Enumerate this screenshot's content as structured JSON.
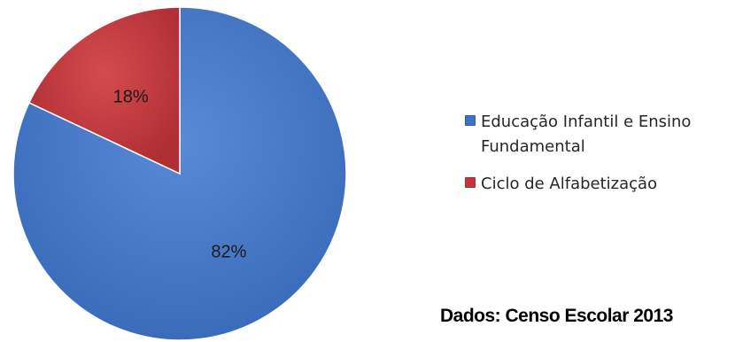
{
  "chart_data": {
    "type": "pie",
    "categories": [
      "Educação Infantil e Ensino Fundamental",
      "Ciclo de Alfabetização"
    ],
    "values": [
      82,
      18
    ],
    "labels": [
      "82%",
      "18%"
    ],
    "colors": [
      "#3d73c4",
      "#c0363a"
    ],
    "legend_position": "right"
  },
  "legend": {
    "items": [
      {
        "label": "Educação Infantil e Ensino Fundamental",
        "color": "#3d73c4"
      },
      {
        "label": "Ciclo de Alfabetização",
        "color": "#c0363a"
      }
    ]
  },
  "source_text": "Dados: Censo Escolar 2013"
}
